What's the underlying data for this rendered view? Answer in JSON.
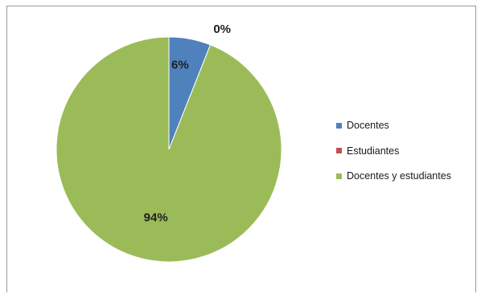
{
  "chart_data": {
    "type": "pie",
    "title": "",
    "categories": [
      "Docentes",
      "Estudiantes",
      "Docentes y estudiantes"
    ],
    "values": [
      6,
      0,
      94
    ],
    "data_labels": [
      "6%",
      "0%",
      "94%"
    ],
    "colors": [
      "#4f81bd",
      "#c0504d",
      "#9bbb59"
    ],
    "start_angle_deg": 0,
    "direction": "clockwise",
    "legend_position": "right",
    "grid": false
  },
  "legend": {
    "items": [
      {
        "label": "Docentes",
        "color": "#4f81bd"
      },
      {
        "label": "Estudiantes",
        "color": "#c0504d"
      },
      {
        "label": "Docentes y estudiantes",
        "color": "#9bbb59"
      }
    ]
  }
}
